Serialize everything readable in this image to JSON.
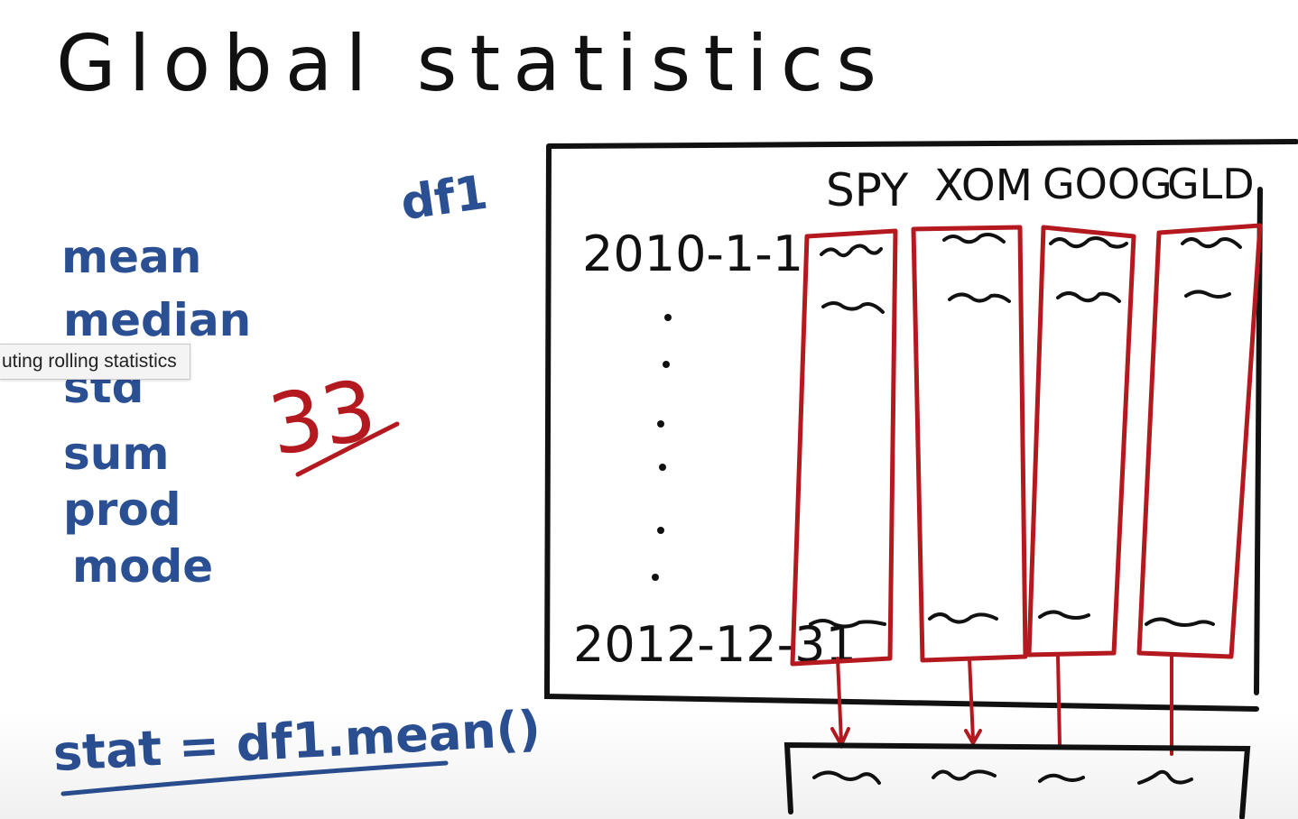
{
  "title": "Global statistics",
  "left_panel": {
    "df_label": "df1",
    "stats": [
      "mean",
      "median",
      "std",
      "sum",
      "prod",
      "mode"
    ],
    "count": "33",
    "formula": "stat = df1.mean()"
  },
  "table": {
    "columns": [
      "SPY",
      "XOM",
      "GOOG",
      "GLD"
    ],
    "row_start": "2010-1-1",
    "row_end": "2012-12-31"
  },
  "tooltip": {
    "text": "uting rolling statistics"
  },
  "colors": {
    "blue_ink": "#2a4f92",
    "black_ink": "#111111",
    "red_ink": "#b3191f"
  }
}
